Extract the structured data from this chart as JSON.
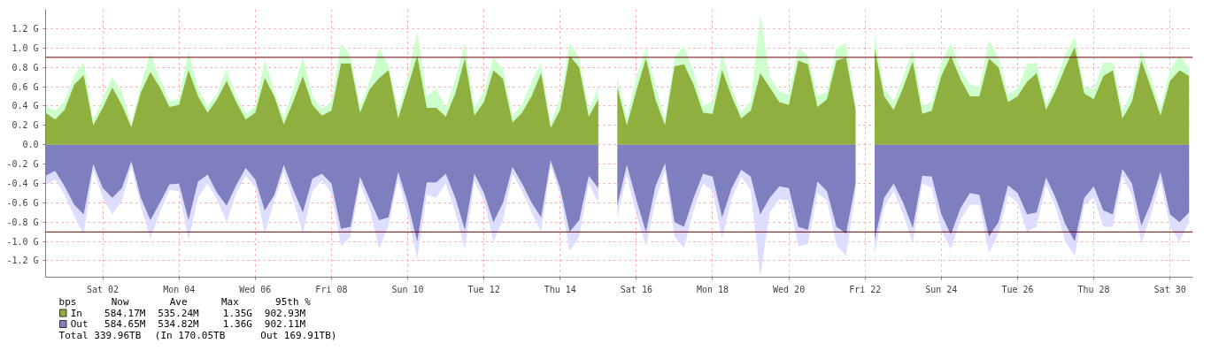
{
  "chart_data": {
    "type": "area",
    "ylim": [
      -1.37,
      1.4
    ],
    "categories": [
      null,
      null,
      null,
      null,
      null,
      null,
      "Sat 02",
      null,
      null,
      null,
      null,
      null,
      null,
      null,
      "Mon 04",
      null,
      null,
      null,
      null,
      null,
      null,
      null,
      "Wed 06",
      null,
      null,
      null,
      null,
      null,
      null,
      null,
      "Fri 08",
      null,
      null,
      null,
      null,
      null,
      null,
      null,
      "Sun 10",
      null,
      null,
      null,
      null,
      null,
      null,
      null,
      "Tue 12",
      null,
      null,
      null,
      null,
      null,
      null,
      null,
      "Thu 14",
      null,
      null,
      null,
      null,
      null,
      null,
      null,
      "Sat 16",
      null,
      null,
      null,
      null,
      null,
      null,
      null,
      "Mon 18",
      null,
      null,
      null,
      null,
      null,
      null,
      null,
      "Wed 20",
      null,
      null,
      null,
      null,
      null,
      null,
      null,
      "Fri 22",
      null,
      null,
      null,
      null,
      null,
      null,
      null,
      "Sun 24",
      null,
      null,
      null,
      null,
      null,
      null,
      null,
      "Tue 26",
      null,
      null,
      null,
      null,
      null,
      null,
      null,
      "Thu 28",
      null,
      null,
      null,
      null,
      null,
      null,
      null,
      "Sat 30",
      null,
      null
    ],
    "series": [
      {
        "color": "#ccffcc",
        "values": [
          0.4,
          0.35,
          0.45,
          0.72,
          0.85,
          0.25,
          0.48,
          0.7,
          0.55,
          0.22,
          0.62,
          0.95,
          0.68,
          0.45,
          0.48,
          0.97,
          0.58,
          0.4,
          0.53,
          0.78,
          0.5,
          0.32,
          0.4,
          0.88,
          0.55,
          0.28,
          0.58,
          0.9,
          0.5,
          0.37,
          0.45,
          1.05,
          0.92,
          0.4,
          0.65,
          1.0,
          0.82,
          0.35,
          0.7,
          1.17,
          0.5,
          0.58,
          0.38,
          0.68,
          1.05,
          0.38,
          0.55,
          0.9,
          0.78,
          0.3,
          0.42,
          0.65,
          0.85,
          0.22,
          0.48,
          1.05,
          0.9,
          0.36,
          0.6,
          null,
          0.7,
          0.28,
          0.7,
          1.0,
          0.6,
          0.27,
          0.9,
          1.02,
          0.75,
          0.4,
          0.45,
          0.95,
          0.58,
          0.33,
          0.45,
          1.35,
          0.7,
          0.55,
          0.52,
          1.0,
          0.92,
          0.5,
          0.55,
          1.0,
          1.05,
          0.42,
          null,
          1.13,
          0.58,
          0.45,
          0.7,
          0.98,
          0.4,
          0.45,
          0.85,
          1.05,
          0.78,
          0.62,
          0.6,
          1.08,
          0.9,
          0.52,
          0.58,
          0.83,
          0.85,
          0.42,
          0.65,
          0.93,
          1.12,
          0.6,
          0.58,
          0.85,
          0.85,
          0.35,
          0.55,
          0.98,
          0.68,
          0.38,
          0.78,
          0.92,
          0.8
        ]
      },
      {
        "color": "#ddddff",
        "values": [
          -0.42,
          -0.36,
          -0.52,
          -0.74,
          -0.93,
          -0.26,
          -0.55,
          -0.72,
          -0.58,
          -0.22,
          -0.64,
          -0.97,
          -0.7,
          -0.47,
          -0.48,
          -0.99,
          -0.55,
          -0.4,
          -0.57,
          -0.8,
          -0.5,
          -0.32,
          -0.44,
          -0.92,
          -0.58,
          -0.28,
          -0.58,
          -0.92,
          -0.48,
          -0.37,
          -0.5,
          -1.05,
          -0.95,
          -0.4,
          -0.66,
          -1.08,
          -0.83,
          -0.36,
          -0.72,
          -1.18,
          -0.52,
          -0.55,
          -0.4,
          -0.7,
          -1.08,
          -0.38,
          -0.58,
          -1.0,
          -0.78,
          -0.3,
          -0.48,
          -0.7,
          -0.9,
          -0.22,
          -0.52,
          -1.1,
          -0.95,
          -0.4,
          -0.6,
          null,
          -0.75,
          -0.32,
          -0.72,
          -1.05,
          -0.58,
          -0.27,
          -0.95,
          -1.07,
          -0.68,
          -0.4,
          -0.48,
          -0.97,
          -0.56,
          -0.33,
          -0.47,
          -1.36,
          -0.7,
          -0.56,
          -0.58,
          -1.05,
          -1.03,
          -0.5,
          -0.58,
          -1.04,
          -1.15,
          -0.5,
          null,
          -1.12,
          -0.65,
          -0.48,
          -0.72,
          -1.02,
          -0.4,
          -0.45,
          -0.88,
          -1.08,
          -0.78,
          -0.62,
          -0.62,
          -1.12,
          -0.92,
          -0.52,
          -0.6,
          -0.9,
          -0.85,
          -0.42,
          -0.65,
          -1.0,
          -1.15,
          -0.62,
          -0.55,
          -0.85,
          -0.85,
          -0.33,
          -0.52,
          -1.02,
          -0.72,
          -0.37,
          -0.85,
          -1.0,
          -0.8
        ]
      },
      {
        "name": "In",
        "color": "#8fb03f",
        "values": [
          0.33,
          0.26,
          0.36,
          0.62,
          0.72,
          0.2,
          0.38,
          0.59,
          0.41,
          0.18,
          0.54,
          0.75,
          0.59,
          0.39,
          0.41,
          0.77,
          0.5,
          0.33,
          0.47,
          0.66,
          0.44,
          0.26,
          0.33,
          0.69,
          0.5,
          0.21,
          0.45,
          0.71,
          0.41,
          0.3,
          0.35,
          0.84,
          0.84,
          0.33,
          0.57,
          0.69,
          0.77,
          0.27,
          0.59,
          0.92,
          0.38,
          0.38,
          0.29,
          0.53,
          0.89,
          0.3,
          0.44,
          0.77,
          0.68,
          0.23,
          0.33,
          0.5,
          0.74,
          0.17,
          0.36,
          0.92,
          0.8,
          0.29,
          0.47,
          null,
          0.59,
          0.2,
          0.56,
          0.89,
          0.47,
          0.2,
          0.81,
          0.83,
          0.62,
          0.33,
          0.32,
          0.77,
          0.5,
          0.27,
          0.35,
          0.74,
          0.59,
          0.44,
          0.41,
          0.87,
          0.83,
          0.39,
          0.47,
          0.87,
          0.9,
          0.36,
          null,
          0.99,
          0.5,
          0.36,
          0.59,
          0.86,
          0.32,
          0.35,
          0.71,
          0.92,
          0.68,
          0.5,
          0.5,
          0.89,
          0.8,
          0.44,
          0.5,
          0.65,
          0.74,
          0.36,
          0.56,
          0.8,
          1.01,
          0.53,
          0.47,
          0.71,
          0.77,
          0.27,
          0.44,
          0.87,
          0.59,
          0.3,
          0.66,
          0.77,
          0.71
        ]
      },
      {
        "name": "Out",
        "color": "#7f7fbf",
        "values": [
          -0.32,
          -0.27,
          -0.43,
          -0.62,
          -0.72,
          -0.2,
          -0.45,
          -0.55,
          -0.45,
          -0.17,
          -0.55,
          -0.78,
          -0.6,
          -0.41,
          -0.4,
          -0.78,
          -0.38,
          -0.31,
          -0.5,
          -0.63,
          -0.42,
          -0.24,
          -0.36,
          -0.68,
          -0.52,
          -0.21,
          -0.47,
          -0.7,
          -0.35,
          -0.3,
          -0.4,
          -0.87,
          -0.85,
          -0.33,
          -0.56,
          -0.78,
          -0.75,
          -0.28,
          -0.6,
          -1.0,
          -0.39,
          -0.39,
          -0.3,
          -0.55,
          -0.88,
          -0.3,
          -0.5,
          -0.8,
          -0.6,
          -0.23,
          -0.4,
          -0.6,
          -0.75,
          -0.16,
          -0.45,
          -0.9,
          -0.78,
          -0.32,
          -0.45,
          null,
          -0.63,
          -0.21,
          -0.57,
          -0.9,
          -0.43,
          -0.19,
          -0.8,
          -0.85,
          -0.55,
          -0.3,
          -0.33,
          -0.75,
          -0.45,
          -0.26,
          -0.33,
          -0.72,
          -0.55,
          -0.43,
          -0.45,
          -0.85,
          -0.88,
          -0.38,
          -0.48,
          -0.85,
          -0.92,
          -0.4,
          null,
          -0.98,
          -0.55,
          -0.4,
          -0.6,
          -0.86,
          -0.32,
          -0.33,
          -0.72,
          -0.93,
          -0.66,
          -0.5,
          -0.52,
          -0.95,
          -0.8,
          -0.42,
          -0.5,
          -0.72,
          -0.7,
          -0.34,
          -0.55,
          -0.82,
          -1.0,
          -0.55,
          -0.43,
          -0.68,
          -0.72,
          -0.25,
          -0.4,
          -0.84,
          -0.6,
          -0.28,
          -0.72,
          -0.8,
          -0.7
        ]
      }
    ],
    "yticks": [
      {
        "value": -1.2,
        "label": "-1.2 G"
      },
      {
        "value": -1.0,
        "label": "-1.0 G"
      },
      {
        "value": -0.8,
        "label": "-0.8 G"
      },
      {
        "value": -0.6,
        "label": "-0.6 G"
      },
      {
        "value": -0.4,
        "label": "-0.4 G"
      },
      {
        "value": -0.2,
        "label": "-0.2 G"
      },
      {
        "value": 0,
        "label": "0.0"
      },
      {
        "value": 0.2,
        "label": "0.2 G"
      },
      {
        "value": 0.4,
        "label": "0.4 G"
      },
      {
        "value": 0.6,
        "label": "0.6 G"
      },
      {
        "value": 0.8,
        "label": "0.8 G"
      },
      {
        "value": 1.0,
        "label": "1.0 G"
      },
      {
        "value": 1.2,
        "label": "1.2 G"
      }
    ],
    "ref_lines": [
      {
        "axis": "y",
        "value": 0.90293,
        "color": "#660000"
      },
      {
        "axis": "y",
        "value": -0.90211,
        "color": "#660000"
      }
    ],
    "grid": true,
    "legend": "bottom",
    "annotations": [
      "bps      Now      Ave      Max     95th %",
      "584.17M  535.24M    1.35G  902.93M",
      "584.65M  534.82M    1.36G  902.11M",
      "Total 339.96TB  (In 170.05TB  Out 169.91TB)"
    ]
  }
}
